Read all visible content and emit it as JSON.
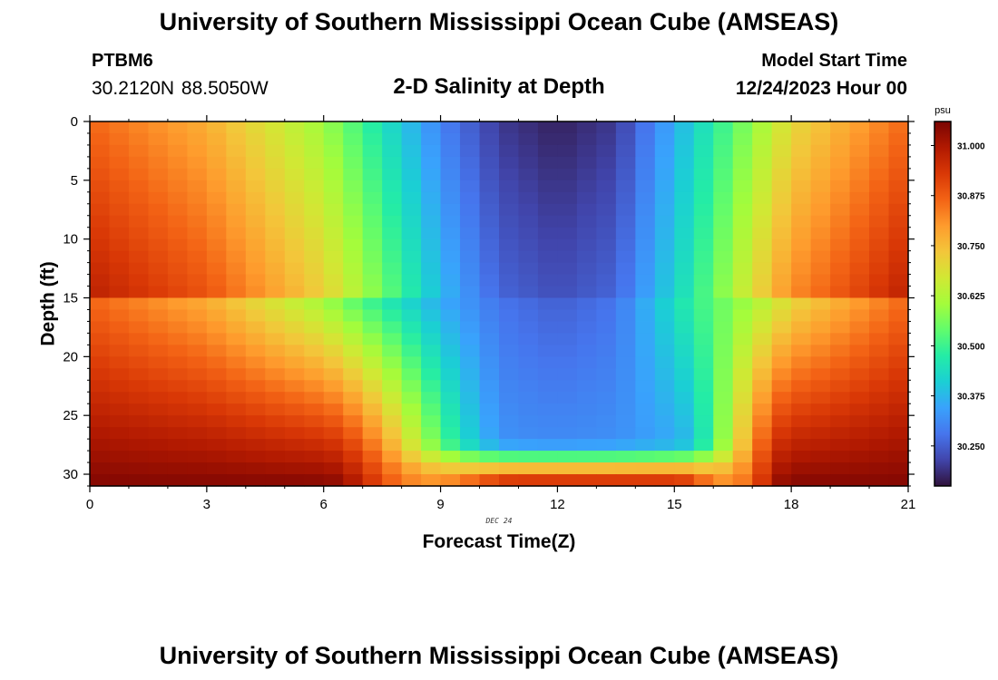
{
  "header": {
    "title": "University of Southern Mississippi Ocean Cube (AMSEAS)",
    "station_id": "PTBM6",
    "station_coords": "30.2120N  88.5050W",
    "plot_title": "2-D Salinity at Depth",
    "model_start_label": "Model Start Time",
    "model_start_value": "12/24/2023 Hour 00"
  },
  "footer": {
    "title": "University of Southern Mississippi Ocean Cube (AMSEAS)"
  },
  "chart_data": {
    "type": "heatmap",
    "title": "2-D Salinity at Depth",
    "xlabel": "Forecast Time(Z)",
    "ylabel": "Depth (ft)",
    "x_ticks": [
      0,
      3,
      6,
      9,
      12,
      15,
      18,
      21
    ],
    "x_tick_labels": [
      "0",
      "3",
      "6",
      "9",
      "12",
      "15",
      "18",
      "21"
    ],
    "y_ticks": [
      0,
      5,
      10,
      15,
      20,
      25,
      30
    ],
    "y_tick_labels": [
      "0",
      "5",
      "10",
      "15",
      "20",
      "25",
      "30"
    ],
    "xlim": [
      0,
      21
    ],
    "ylim": [
      0,
      31
    ],
    "date_label": "DEC 24",
    "date_label_x": 10.5,
    "colorbar": {
      "units": "psu",
      "min": 30.15,
      "max": 31.06,
      "ticks": [
        31.0,
        30.875,
        30.75,
        30.625,
        30.5,
        30.375,
        30.25
      ],
      "tick_labels": [
        "31.000",
        "30.875",
        "30.750",
        "30.625",
        "30.500",
        "30.375",
        "30.250"
      ],
      "colormap": [
        "#30123b",
        "#4145ab",
        "#4675ed",
        "#39a2fc",
        "#1bcfd4",
        "#24eca6",
        "#61fc6c",
        "#a4fc3b",
        "#d1e834",
        "#f3c63a",
        "#fe9b2d",
        "#f36315",
        "#d93806",
        "#b11901",
        "#7a0402"
      ]
    },
    "time_steps": 42,
    "depth_levels": 31,
    "salinity_field": {
      "description": "Salinity (psu) sampled every 0.5 h (x) and 1 ft (y)",
      "surface_profile_hours": [
        0,
        3,
        6,
        9,
        10.5,
        12,
        13.5,
        15,
        18,
        21
      ],
      "surface_profile_psu": [
        30.86,
        30.77,
        30.6,
        30.3,
        30.2,
        30.17,
        30.2,
        30.36,
        30.7,
        30.86
      ],
      "deep_bottom_psu": 31.05,
      "deep_midchannel_psu": 30.33,
      "channel_start_hour": 6,
      "channel_end_hour": 17,
      "channel_floor_depth_ft": 29
    }
  }
}
